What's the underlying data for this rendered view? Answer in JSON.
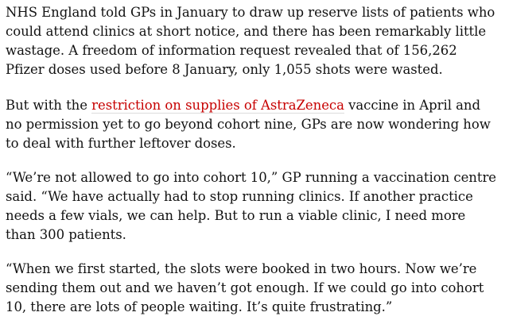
{
  "article": {
    "paragraphs": [
      {
        "text": "NHS England told GPs in January to draw up reserve lists of patients who could attend clinics at short notice, and there has been remarkably little wastage. A freedom of information request revealed that of 156,262 Pfizer doses used before 8 January, only 1,055 shots were wasted."
      },
      {
        "before": "But with the ",
        "link": "restriction on supplies of AstraZeneca",
        "after": " vaccine in April and no permission yet to go beyond cohort nine, GPs are now wondering how to deal with further leftover doses."
      },
      {
        "text": "“We’re not allowed to go into cohort 10,” GP running a vaccination centre said. “We have actually had to stop running clinics. If another practice needs a few vials, we can help. But to run a viable clinic, I need more than 300 patients."
      },
      {
        "text": "“When we first started, the slots were booked in two hours. Now we’re sending them out and we haven’t got enough. If we could go into cohort 10, there are lots of people waiting. It’s quite frustrating.”"
      }
    ]
  },
  "colors": {
    "body_text": "#121212",
    "link_text": "#c70000",
    "background": "#ffffff"
  }
}
